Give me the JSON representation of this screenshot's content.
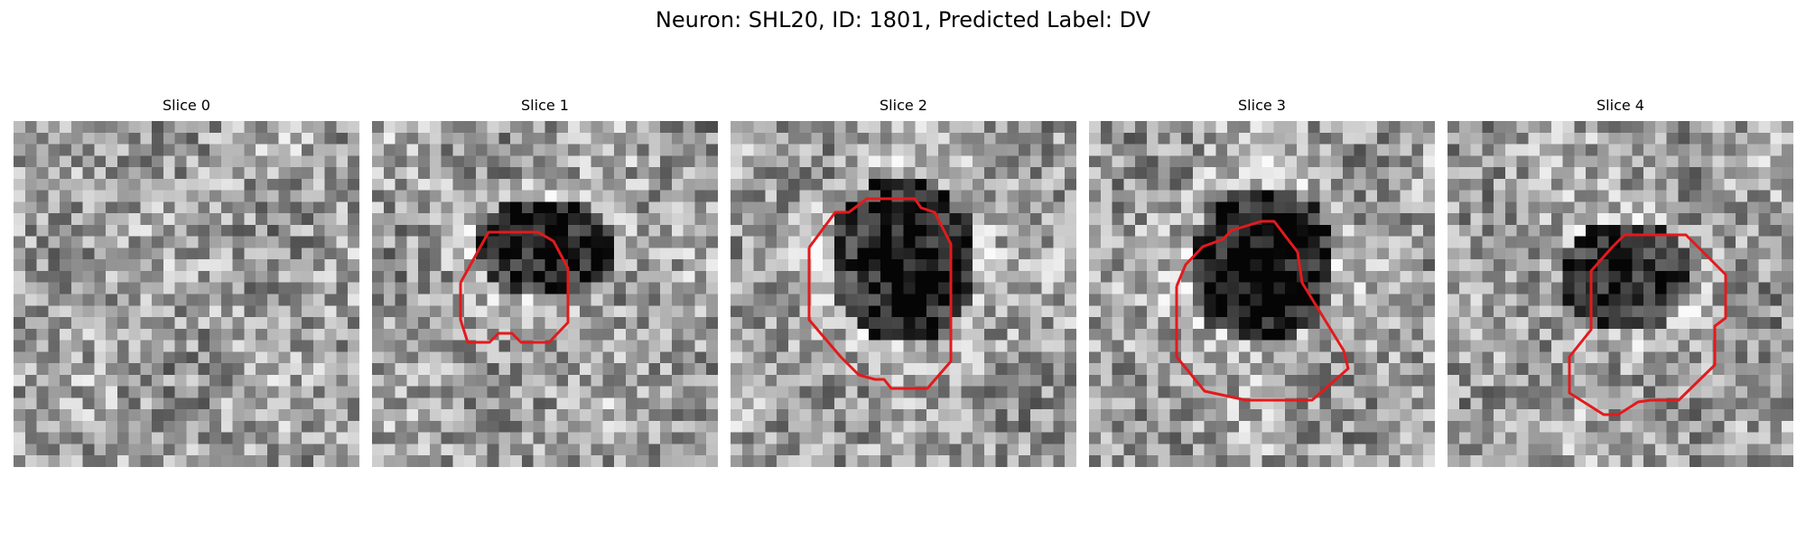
{
  "figure": {
    "title": "Neuron: SHL20, ID: 1801, Predicted Label: DV"
  },
  "panels": [
    {
      "title": "Slice 0",
      "has_contour": false,
      "blob": null
    },
    {
      "title": "Slice 1",
      "has_contour": true,
      "blob": {
        "cx": 14.5,
        "cy": 10.5,
        "rx": 6,
        "ry": 4.5,
        "darkness": 0.55
      }
    },
    {
      "title": "Slice 2",
      "has_contour": true,
      "blob": {
        "cx": 14.5,
        "cy": 11.5,
        "rx": 6.5,
        "ry": 7.5,
        "darkness": 0.55
      }
    },
    {
      "title": "Slice 3",
      "has_contour": true,
      "blob": {
        "cx": 14.5,
        "cy": 12,
        "rx": 6.5,
        "ry": 7,
        "darkness": 0.6
      }
    },
    {
      "title": "Slice 4",
      "has_contour": true,
      "blob": {
        "cx": 15,
        "cy": 13,
        "rx": 5.5,
        "ry": 5,
        "darkness": 0.5
      }
    }
  ],
  "colors": {
    "contour": "#e31a1c",
    "background": "#ffffff",
    "text": "#000000"
  }
}
